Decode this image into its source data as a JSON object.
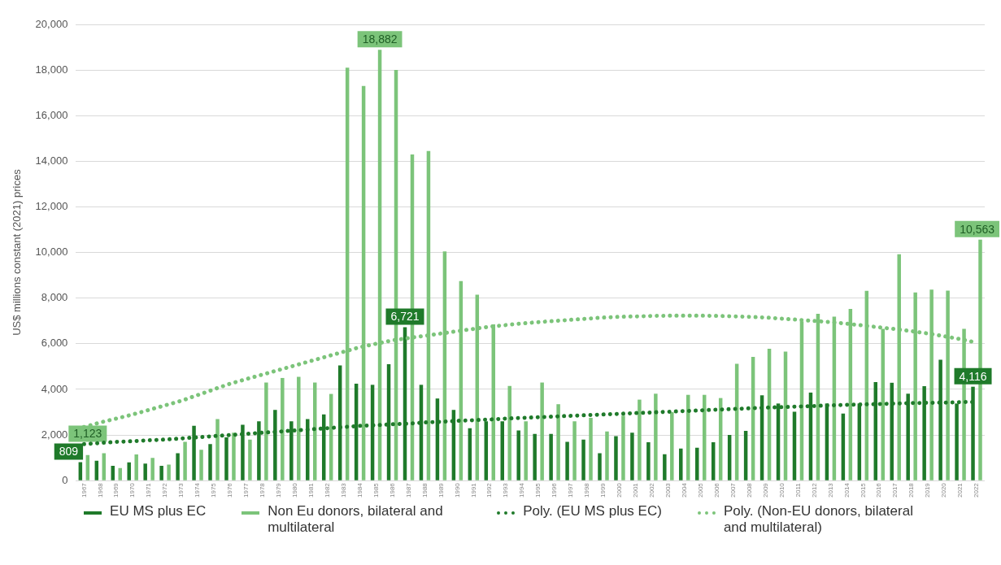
{
  "chart_data": {
    "type": "bar",
    "ylabel": "US$ millions constant (2021) prices",
    "categories": [
      "1967",
      "1968",
      "1969",
      "1970",
      "1971",
      "1972",
      "1973",
      "1974",
      "1975",
      "1976",
      "1977",
      "1978",
      "1979",
      "1980",
      "1981",
      "1982",
      "1983",
      "1984",
      "1985",
      "1986",
      "1987",
      "1988",
      "1989",
      "1990",
      "1991",
      "1992",
      "1993",
      "1994",
      "1995",
      "1996",
      "1997",
      "1998",
      "1999",
      "2000",
      "2001",
      "2002",
      "2003",
      "2004",
      "2005",
      "2006",
      "2007",
      "2008",
      "2009",
      "2010",
      "2011",
      "2012",
      "2013",
      "2014",
      "2015",
      "2016",
      "2017",
      "2018",
      "2019",
      "2020",
      "2021",
      "2022"
    ],
    "series": [
      {
        "name": "EU MS plus EC",
        "color": "#1f7a2a",
        "values": [
          809,
          870,
          650,
          800,
          750,
          650,
          1200,
          2400,
          1600,
          1900,
          2450,
          2600,
          3100,
          2600,
          2700,
          2900,
          5050,
          4250,
          4200,
          5100,
          6721,
          4200,
          3600,
          3100,
          2300,
          2600,
          2600,
          2200,
          2050,
          2050,
          1700,
          1800,
          1200,
          1950,
          2100,
          1680,
          1160,
          1410,
          1440,
          1680,
          2000,
          2180,
          3740,
          3380,
          3020,
          3860,
          3380,
          2940,
          3380,
          4320,
          4290,
          3810,
          4140,
          5300,
          3380,
          4116
        ],
        "value_labels": [
          "809",
          null,
          null,
          null,
          null,
          null,
          null,
          null,
          null,
          null,
          null,
          null,
          null,
          null,
          null,
          null,
          null,
          null,
          null,
          null,
          "6,721",
          null,
          null,
          null,
          null,
          null,
          null,
          null,
          null,
          null,
          null,
          null,
          null,
          null,
          null,
          null,
          null,
          null,
          null,
          null,
          null,
          null,
          null,
          null,
          null,
          null,
          null,
          null,
          null,
          null,
          null,
          null,
          null,
          null,
          null,
          "4,116"
        ]
      },
      {
        "name": "Non Eu donors, bilateral and multilateral",
        "color": "#7cc47a",
        "values": [
          1123,
          1200,
          550,
          1150,
          1000,
          700,
          1700,
          1350,
          2700,
          2100,
          1800,
          4300,
          4500,
          4550,
          4300,
          3800,
          18100,
          17300,
          18882,
          18000,
          14300,
          14450,
          10050,
          8750,
          8150,
          6850,
          4150,
          2600,
          4300,
          3350,
          2600,
          2750,
          2150,
          2850,
          3550,
          3810,
          3000,
          3760,
          3760,
          3620,
          5120,
          5420,
          5780,
          5660,
          6980,
          7310,
          7190,
          7530,
          8320,
          6650,
          9920,
          8250,
          8370,
          8330,
          6650,
          10563
        ],
        "value_labels": [
          "1,123",
          null,
          null,
          null,
          null,
          null,
          null,
          null,
          null,
          null,
          null,
          null,
          null,
          null,
          null,
          null,
          null,
          null,
          "18,882",
          null,
          null,
          null,
          null,
          null,
          null,
          null,
          null,
          null,
          null,
          null,
          null,
          null,
          null,
          null,
          null,
          null,
          null,
          null,
          null,
          null,
          null,
          null,
          null,
          null,
          null,
          null,
          null,
          null,
          null,
          null,
          null,
          null,
          null,
          null,
          null,
          "10,563"
        ]
      },
      {
        "name": "Poly. (EU MS plus EC)",
        "type": "line",
        "line_style": "dotted",
        "marker": "none",
        "color": "#1f7a2a",
        "values": [
          1600,
          1650,
          1700,
          1730,
          1770,
          1800,
          1850,
          1900,
          1950,
          2000,
          2050,
          2100,
          2150,
          2200,
          2250,
          2300,
          2350,
          2400,
          2430,
          2470,
          2500,
          2550,
          2580,
          2620,
          2650,
          2680,
          2720,
          2750,
          2780,
          2810,
          2840,
          2870,
          2900,
          2930,
          2960,
          2990,
          3020,
          3050,
          3080,
          3110,
          3140,
          3170,
          3200,
          3220,
          3250,
          3270,
          3300,
          3320,
          3340,
          3360,
          3380,
          3400,
          3410,
          3420,
          3440,
          3450
        ]
      },
      {
        "name": "Poly. (Non-EU donors, bilateral and multilateral)",
        "type": "line",
        "line_style": "dotted",
        "marker": "none",
        "color": "#7cc47a",
        "values": [
          2350,
          2550,
          2720,
          2900,
          3100,
          3300,
          3500,
          3750,
          4000,
          4250,
          4450,
          4650,
          4850,
          5050,
          5250,
          5450,
          5650,
          5850,
          6000,
          6150,
          6250,
          6350,
          6450,
          6550,
          6650,
          6750,
          6820,
          6890,
          6950,
          7000,
          7050,
          7100,
          7150,
          7180,
          7200,
          7220,
          7230,
          7230,
          7230,
          7220,
          7200,
          7180,
          7150,
          7100,
          7050,
          7000,
          6950,
          6880,
          6800,
          6720,
          6640,
          6550,
          6450,
          6330,
          6200,
          6050
        ]
      }
    ],
    "ylim": [
      0,
      20000
    ],
    "yticks": [
      0,
      {
        "value": 2000,
        "label": "2,000"
      },
      {
        "value": 4000,
        "label": "4,000"
      },
      {
        "value": 6000,
        "label": "6,000"
      },
      {
        "value": 8000,
        "label": "8,000"
      },
      {
        "value": 10000,
        "label": "10,000"
      },
      {
        "value": 12000,
        "label": "12,000"
      },
      {
        "value": 14000,
        "label": "14,000"
      },
      {
        "value": 16000,
        "label": "16,000"
      },
      {
        "value": 18000,
        "label": "18,000"
      },
      {
        "value": 20000,
        "label": "20,000"
      }
    ],
    "grid": "y",
    "legend": "bottom"
  }
}
